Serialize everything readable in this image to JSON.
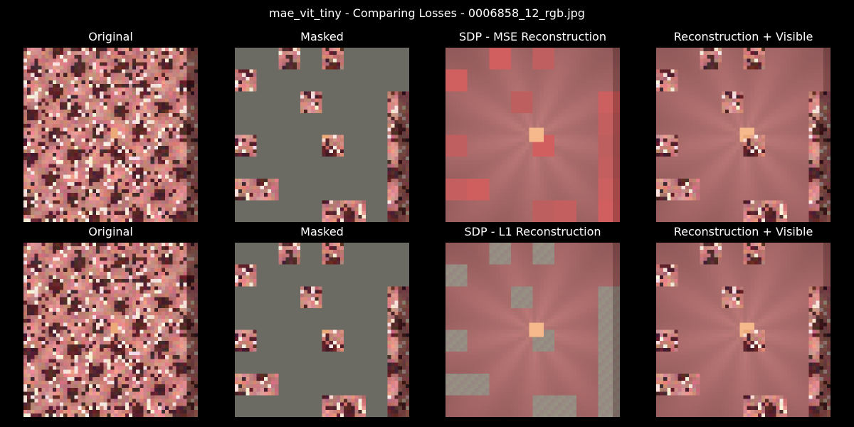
{
  "figure": {
    "title": "mae_vit_tiny - Comparing Losses - 0006858_12_rgb.jpg"
  },
  "rows": [
    {
      "panels": [
        {
          "title": "Original",
          "kind": "original"
        },
        {
          "title": "Masked",
          "kind": "masked"
        },
        {
          "title": "SDP - MSE Reconstruction",
          "kind": "recon_mse"
        },
        {
          "title": "Reconstruction + Visible",
          "kind": "recon_visible_mse"
        }
      ]
    },
    {
      "panels": [
        {
          "title": "Original",
          "kind": "original"
        },
        {
          "title": "Masked",
          "kind": "masked"
        },
        {
          "title": "SDP - L1 Reconstruction",
          "kind": "recon_l1"
        },
        {
          "title": "Reconstruction + Visible",
          "kind": "recon_visible_l1"
        }
      ]
    }
  ],
  "colors": {
    "background": "#000000",
    "mask_gray": "#6b6b64",
    "recon_base": "#b87a78"
  }
}
